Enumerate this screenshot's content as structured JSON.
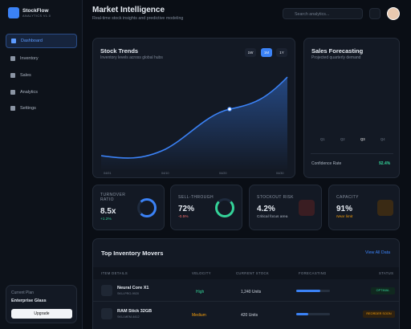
{
  "brand": {
    "name": "StockFlow",
    "version": "ANALYTICS V1.0"
  },
  "nav": [
    "Dashboard",
    "Inventory",
    "Sales",
    "Analytics",
    "Settings"
  ],
  "plan": {
    "label": "Current Plan",
    "name": "Enterprise Glass",
    "button": "Upgrade"
  },
  "header": {
    "title": "Market Intelligence",
    "subtitle": "Real-time stock insights and predictive modeling",
    "search": "Search analytics..."
  },
  "stock_trends": {
    "title": "Stock Trends",
    "subtitle": "Inventory levels across global hubs",
    "ranges": [
      "1W",
      "1M",
      "1Y"
    ],
    "x_labels": [
      "04/01",
      "04/10",
      "04/20",
      "04/30"
    ]
  },
  "sales_forecasting": {
    "title": "Sales Forecasting",
    "subtitle": "Projected quarterly demand",
    "quarters": [
      "Q1",
      "Q2",
      "Q3",
      "Q4"
    ],
    "confidence_label": "Confidence Rate",
    "confidence_value": "92.4%"
  },
  "kpis": [
    {
      "label": "TURNOVER RATIO",
      "value": "8.5x",
      "change": "+1.2%"
    },
    {
      "label": "SELL-THROUGH",
      "value": "72%",
      "change": "-0.5%"
    },
    {
      "label": "STOCKOUT RISK",
      "value": "4.2%",
      "change": "Critical focus area"
    },
    {
      "label": "CAPACITY",
      "value": "91%",
      "change": "Near limit"
    }
  ],
  "table": {
    "title": "Top Inventory Movers",
    "link": "View All Data",
    "headers": [
      "ITEM DETAILS",
      "VELOCITY",
      "CURRENT STOCK",
      "FORECASTING",
      "STATUS"
    ],
    "rows": [
      {
        "name": "Neural Core X1",
        "sku": "SKU-PRO-9920",
        "velocity": "High",
        "stock": "1,240 Units",
        "status": "OPTIMAL"
      },
      {
        "name": "RAM Stick 32GB",
        "sku": "SKU-MEM-4412",
        "velocity": "Medium",
        "stock": "420 Units",
        "status": "REORDER SOON"
      }
    ]
  }
}
